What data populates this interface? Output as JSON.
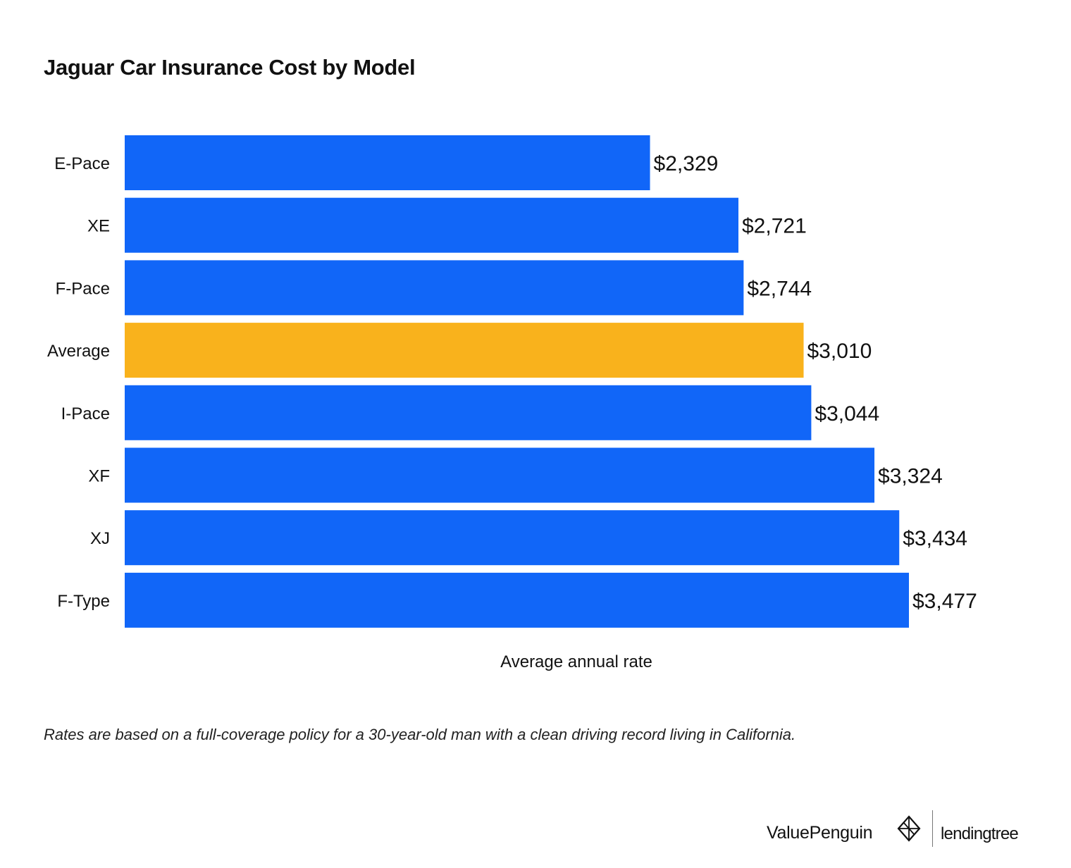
{
  "chart_data": {
    "type": "bar",
    "orientation": "horizontal",
    "title": "Jaguar Car Insurance Cost by Model",
    "xlabel": "Average annual rate",
    "ylabel": "",
    "categories": [
      "E-Pace",
      "XE",
      "F-Pace",
      "Average",
      "I-Pace",
      "XF",
      "XJ",
      "F-Type"
    ],
    "values": [
      2329,
      2721,
      2744,
      3010,
      3044,
      3324,
      3434,
      3477
    ],
    "value_labels": [
      "$2,329",
      "$2,721",
      "$2,744",
      "$3,010",
      "$3,044",
      "$3,324",
      "$3,434",
      "$3,477"
    ],
    "highlight_category": "Average",
    "xlim": [
      0,
      3500
    ],
    "grid": false,
    "legend": "none",
    "colors": {
      "bar": "#1166f8",
      "highlight": "#f9b21c",
      "text": "#111111"
    }
  },
  "footnote": "Rates are based on a full-coverage policy for a 30-year-old man with a clean driving record living in California.",
  "branding": {
    "primary": "ValuePenguin",
    "secondary": "lendingtree",
    "logo_icon": "valuepenguin-diamond-icon"
  }
}
